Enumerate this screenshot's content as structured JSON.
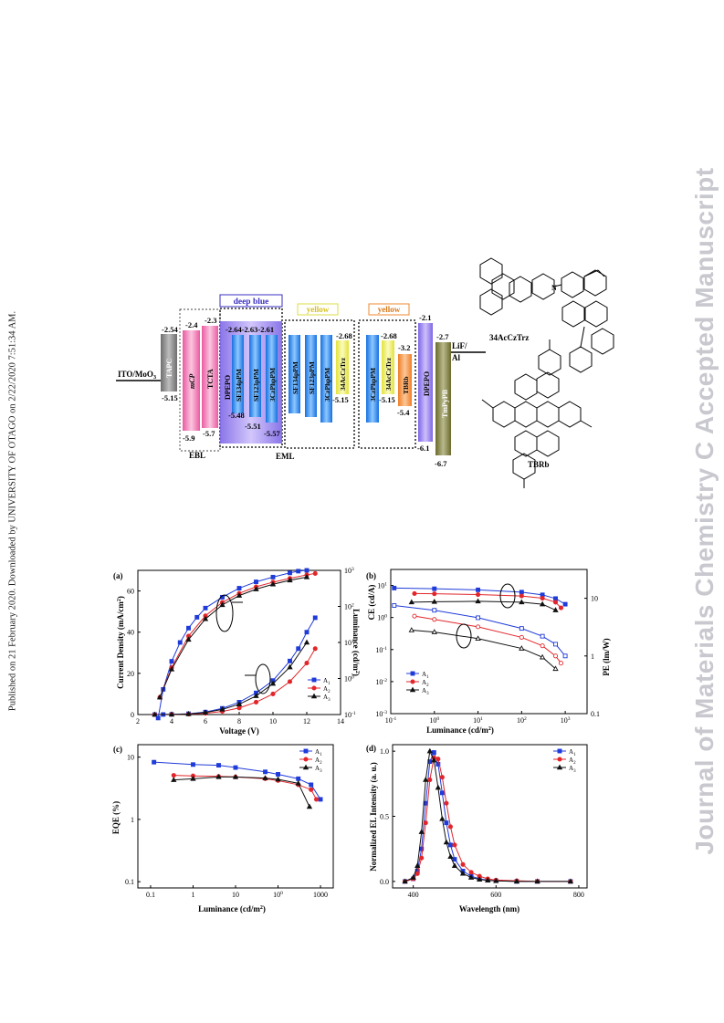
{
  "sidebar": {
    "left_text": "Published on 21 February 2020. Downloaded by UNIVERSITY OF OTAGO on 2/22/2020 7:51:34 AM.",
    "right_text": "Journal of Materials Chemistry C Accepted Manuscript"
  },
  "energy_diagram": {
    "anode": "ITO/MoO",
    "anode_sub": "3",
    "cathode_top": "LiF/",
    "cathode_bottom": "Al",
    "group_labels": {
      "ebl": "EBL",
      "eml": "EML",
      "deep_blue": "deep blue",
      "yellow1": "yellow",
      "yellow2": "yellow"
    },
    "layers": [
      {
        "name": "TAPC",
        "lumo": "-2.54",
        "homo": "-5.15"
      },
      {
        "name": "mCP",
        "lumo": "-2.4",
        "homo": "-5.9"
      },
      {
        "name": "TCTA",
        "lumo": "-2.3",
        "homo": "-5.7"
      },
      {
        "name": "DPEPO",
        "lumo": "",
        "homo": ""
      },
      {
        "name": "SF134pPM",
        "lumo": "-2.64",
        "homo": "-5.48"
      },
      {
        "name": "SF123pPM",
        "lumo": "-2.63",
        "homo": "-5.51"
      },
      {
        "name": "3CzPhpPM",
        "lumo": "-2.61",
        "homo": "-5.57"
      },
      {
        "name": "SF134pPM",
        "lumo": "",
        "homo": ""
      },
      {
        "name": "SF123pPM",
        "lumo": "",
        "homo": ""
      },
      {
        "name": "3CzPhpPM",
        "lumo": "",
        "homo": ""
      },
      {
        "name": "34AcCzTrz",
        "lumo": "-2.68",
        "homo": "-5.15"
      },
      {
        "name": "3CzPhpPM",
        "lumo": "",
        "homo": ""
      },
      {
        "name": "34AcCzTrz",
        "lumo": "-2.68",
        "homo": "-5.15"
      },
      {
        "name": "TBRb",
        "lumo": "-3.2",
        "homo": "-5.4"
      },
      {
        "name": "DPEPO",
        "lumo": "-2.1",
        "homo": "-6.1"
      },
      {
        "name": "TmPyPB",
        "lumo": "-2.7",
        "homo": "-6.7"
      }
    ],
    "molecules": [
      "34AcCzTrz",
      "TBRb"
    ]
  },
  "panels": {
    "a": {
      "label": "(a)",
      "xlabel": "Voltage (V)",
      "ylabel_left": "Current Density (mA/cm",
      "ylabel_left_sup": "2",
      "ylabel_left_end": ")",
      "ylabel_right": "Luminance (cd/m",
      "ylabel_right_sup": "2",
      "ylabel_right_end": ")"
    },
    "b": {
      "label": "(b)",
      "xlabel": "Luminance (cd/m",
      "xlabel_sup": "2",
      "xlabel_end": ")",
      "ylabel_left": "CE (cd/A)",
      "ylabel_right": "PE (lm/W)"
    },
    "c": {
      "label": "(c)",
      "xlabel": "Luminance (cd/m",
      "xlabel_sup": "2",
      "xlabel_end": ")",
      "ylabel": "EQE (%)"
    },
    "d": {
      "label": "(d)",
      "xlabel": "Wavelength (nm)",
      "ylabel": "Normalized EL Intensity (a. u.)"
    }
  },
  "legend": [
    {
      "name": "A",
      "sub": "1",
      "color": "#1f3bd9",
      "marker": "square"
    },
    {
      "name": "A",
      "sub": "2",
      "color": "#e2262b",
      "marker": "circle"
    },
    {
      "name": "A",
      "sub": "3",
      "color": "#111111",
      "marker": "triangle"
    }
  ],
  "chart_data": [
    {
      "panel": "a",
      "type": "line",
      "xlabel": "Voltage (V)",
      "ylabel": "Current Density (mA/cm2)",
      "y2label": "Luminance (cd/m2)",
      "xlim": [
        2,
        14
      ],
      "ylim": [
        0,
        70
      ],
      "y2lim_log": [
        -1,
        3
      ],
      "xticks": [
        "2",
        "4",
        "6",
        "8",
        "10",
        "12",
        "14"
      ],
      "yticks": [
        "0",
        "20",
        "40",
        "60"
      ],
      "y2ticks": [
        "10-1",
        "100",
        "101",
        "102",
        "103"
      ],
      "current_density": [
        {
          "name": "A1",
          "x": [
            3.0,
            3.5,
            4,
            5,
            6,
            7,
            8,
            9,
            10,
            11,
            11.5,
            12,
            12.5
          ],
          "y": [
            0.005,
            0.03,
            0.1,
            0.4,
            1.2,
            3,
            6,
            10.5,
            16.5,
            26,
            32,
            40,
            47
          ]
        },
        {
          "name": "A2",
          "x": [
            3.0,
            4,
            5,
            6,
            7,
            8,
            9,
            10,
            11,
            12,
            12.5
          ],
          "y": [
            0.003,
            0.05,
            0.2,
            0.6,
            1.5,
            3.2,
            6,
            10,
            16,
            25,
            32
          ]
        },
        {
          "name": "A3",
          "x": [
            3.0,
            4,
            5,
            6,
            7,
            8,
            9,
            10,
            11,
            12
          ],
          "y": [
            0.004,
            0.08,
            0.3,
            1,
            2.5,
            5,
            9,
            15,
            23,
            35
          ]
        }
      ],
      "luminance": [
        {
          "name": "A1",
          "x": [
            3.2,
            3.5,
            4,
            4.5,
            5,
            5.5,
            6,
            7,
            8,
            9,
            10,
            11,
            11.5,
            12
          ],
          "y": [
            0.08,
            0.5,
            3,
            10,
            25,
            50,
            90,
            180,
            320,
            480,
            650,
            850,
            950,
            1000
          ]
        },
        {
          "name": "A2",
          "x": [
            3.3,
            4,
            5,
            6,
            7,
            8,
            9,
            10,
            11,
            12,
            12.5
          ],
          "y": [
            0.3,
            2,
            15,
            55,
            130,
            230,
            350,
            470,
            600,
            750,
            820
          ]
        },
        {
          "name": "A3",
          "x": [
            3.3,
            4,
            5,
            6,
            7,
            8,
            9,
            10,
            11,
            12
          ],
          "y": [
            0.3,
            1.8,
            12,
            45,
            110,
            200,
            300,
            410,
            530,
            650
          ]
        }
      ]
    },
    {
      "panel": "b",
      "type": "line",
      "xscale": "log",
      "xlim_log": [
        -1,
        3.5
      ],
      "ylim_log": [
        -3,
        1.5
      ],
      "y2lim_log": [
        -1,
        1.5
      ],
      "xticks": [
        "10-1",
        "100",
        "101",
        "102",
        "103"
      ],
      "yticks": [
        "10-3",
        "10-2",
        "10-1",
        "100",
        "101"
      ],
      "y2ticks": [
        "0.1",
        "1",
        "10"
      ],
      "ce": [
        {
          "name": "A1",
          "x": [
            0.12,
            1,
            10,
            100,
            300,
            600,
            1000
          ],
          "y": [
            8.3,
            7.9,
            7.3,
            6.2,
            5.1,
            3.9,
            2.6
          ]
        },
        {
          "name": "A2",
          "x": [
            0.35,
            1,
            10,
            100,
            300,
            600,
            800
          ],
          "y": [
            5.6,
            5.5,
            5.2,
            4.7,
            4.0,
            3.0,
            2.0
          ]
        },
        {
          "name": "A3",
          "x": [
            0.3,
            1,
            10,
            100,
            300,
            600
          ],
          "y": [
            3.0,
            3.1,
            3.2,
            3.0,
            2.6,
            1.7
          ]
        }
      ],
      "pe": [
        {
          "name": "A1",
          "x": [
            0.12,
            1,
            10,
            100,
            300,
            600,
            1000
          ],
          "y": [
            7.5,
            6.2,
            4.6,
            3.0,
            2.2,
            1.6,
            1.0
          ]
        },
        {
          "name": "A2",
          "x": [
            0.35,
            1,
            10,
            100,
            300,
            600,
            800
          ],
          "y": [
            4.9,
            4.3,
            3.2,
            2.1,
            1.5,
            1.0,
            0.75
          ]
        },
        {
          "name": "A3",
          "x": [
            0.3,
            1,
            10,
            100,
            300,
            600
          ],
          "y": [
            2.8,
            2.6,
            2.0,
            1.35,
            0.95,
            0.6
          ]
        }
      ]
    },
    {
      "panel": "c",
      "type": "line",
      "xscale": "log",
      "yscale": "log",
      "xlabel": "Luminance (cd/m2)",
      "ylabel": "EQE (%)",
      "xticks": [
        "0.1",
        "1",
        "10",
        "100",
        "1000"
      ],
      "yticks": [
        "0.1",
        "1",
        "10"
      ],
      "series": [
        {
          "name": "A1",
          "x": [
            0.12,
            1,
            4,
            10,
            50,
            100,
            300,
            600,
            1000
          ],
          "y": [
            8.3,
            7.6,
            7.4,
            6.8,
            5.8,
            5.3,
            4.5,
            3.6,
            2.1
          ]
        },
        {
          "name": "A2",
          "x": [
            0.35,
            1,
            4,
            10,
            50,
            100,
            300,
            600,
            800
          ],
          "y": [
            5.1,
            5.0,
            4.9,
            4.8,
            4.5,
            4.2,
            3.6,
            3.0,
            2.1
          ]
        },
        {
          "name": "A3",
          "x": [
            0.35,
            1,
            4,
            10,
            50,
            100,
            300,
            550
          ],
          "y": [
            4.3,
            4.5,
            4.8,
            4.8,
            4.6,
            4.4,
            3.8,
            1.6
          ]
        }
      ]
    },
    {
      "panel": "d",
      "type": "line",
      "xlabel": "Wavelength (nm)",
      "ylabel": "Normalized EL Intensity (a. u.)",
      "xlim": [
        350,
        820
      ],
      "ylim": [
        -0.05,
        1.05
      ],
      "xticks": [
        "400",
        "600",
        "800"
      ],
      "yticks": [
        "0.0",
        "0.5",
        "1.0"
      ],
      "series": [
        {
          "name": "A1",
          "x": [
            380,
            400,
            410,
            420,
            430,
            440,
            450,
            460,
            470,
            480,
            490,
            500,
            520,
            540,
            560,
            580,
            600,
            650,
            700,
            780
          ],
          "y": [
            0,
            0.02,
            0.08,
            0.25,
            0.6,
            0.92,
            0.99,
            0.9,
            0.68,
            0.45,
            0.28,
            0.17,
            0.08,
            0.04,
            0.02,
            0.01,
            0.005,
            0,
            0,
            0
          ]
        },
        {
          "name": "A2",
          "x": [
            380,
            400,
            410,
            420,
            430,
            440,
            450,
            460,
            470,
            480,
            490,
            500,
            520,
            540,
            560,
            580,
            600,
            650,
            700,
            780
          ],
          "y": [
            0,
            0.02,
            0.06,
            0.18,
            0.45,
            0.78,
            0.95,
            0.94,
            0.8,
            0.6,
            0.42,
            0.28,
            0.13,
            0.07,
            0.04,
            0.02,
            0.01,
            0.005,
            0,
            0
          ]
        },
        {
          "name": "A3",
          "x": [
            380,
            400,
            410,
            420,
            430,
            440,
            450,
            460,
            470,
            480,
            490,
            500,
            520,
            540,
            560,
            580,
            600,
            650,
            700,
            780
          ],
          "y": [
            0,
            0.03,
            0.12,
            0.38,
            0.78,
            1.0,
            0.93,
            0.72,
            0.48,
            0.3,
            0.19,
            0.12,
            0.06,
            0.03,
            0.015,
            0.008,
            0.004,
            0,
            0,
            0
          ]
        }
      ]
    }
  ]
}
